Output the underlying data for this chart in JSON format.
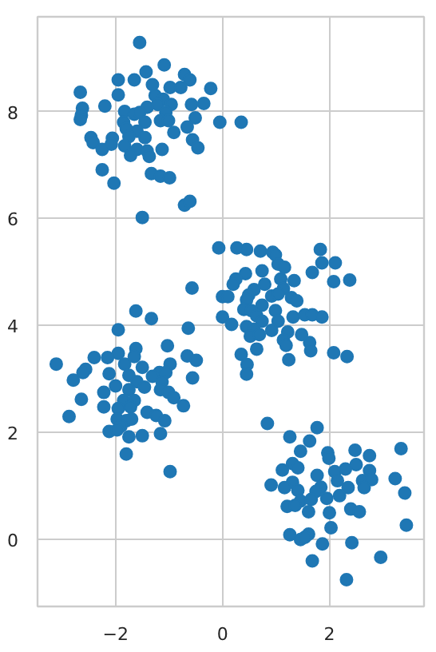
{
  "chart_data": {
    "type": "scatter",
    "marker": "circle",
    "grid": true,
    "xlim": [
      -3.46,
      3.77
    ],
    "ylim": [
      -1.25,
      9.77
    ],
    "xticks": [
      -2,
      0,
      2
    ],
    "yticks": [
      0,
      2,
      4,
      6,
      8
    ],
    "series": [
      {
        "color": "#1f77b4",
        "x": [
          -1.55,
          -1.09,
          -1.43,
          -1.95,
          -1.65,
          -0.71,
          -0.61,
          -2.66,
          -1.95,
          -1.31,
          -0.98,
          -0.78,
          -0.22,
          -1.26,
          -1.11,
          -2.2,
          -2.62,
          -2.64,
          -2.66,
          -1.83,
          -1.65,
          -1.41,
          -1.21,
          -0.96,
          -0.58,
          -0.35,
          -1.55,
          -1.06,
          -1.85,
          -1.45,
          -1.16,
          -1.01,
          -0.51,
          -0.05,
          0.35,
          -1.8,
          -1.6,
          -0.66,
          -0.91,
          -2.46,
          -2.06,
          -1.75,
          -1.45,
          -2.42,
          -2.08,
          -0.56,
          -2.25,
          -1.83,
          -1.6,
          -1.41,
          -1.13,
          -0.46,
          -1.72,
          -1.37,
          -2.25,
          -1.33,
          -1.16,
          -0.99,
          -2.03,
          -0.71,
          -0.61,
          -1.5,
          -0.07,
          0.27,
          0.45,
          0.71,
          0.94,
          0.99,
          1.83,
          1.86,
          2.11,
          1.04,
          1.16,
          0.74,
          0.43,
          0.25,
          0.2,
          1.68,
          2.08,
          2.38,
          0.79,
          1.09,
          1.34,
          1.14,
          0.59,
          0.49,
          0.0,
          0.1,
          0.92,
          1.04,
          1.29,
          1.39,
          0.45,
          0.74,
          0.4,
          0.54,
          0.99,
          0.0,
          0.64,
          1.32,
          1.54,
          1.68,
          1.86,
          1.04,
          0.17,
          0.45,
          0.74,
          0.59,
          0.92,
          0.52,
          0.69,
          1.22,
          1.48,
          1.14,
          1.63,
          1.19,
          1.65,
          0.64,
          0.35,
          2.08,
          2.33,
          1.24,
          0.46,
          0.45,
          -0.57,
          -1.62,
          -1.33,
          -0.64,
          -1.95,
          -1.03,
          -1.62,
          -1.95,
          -2.15,
          -2.4,
          -0.66,
          -0.49,
          -3.11,
          -1.83,
          -1.65,
          -0.98,
          -1.5,
          -2.56,
          -2.61,
          -2.12,
          -1.75,
          -1.18,
          -1.06,
          -1.31,
          -2.79,
          -0.56,
          -1.6,
          -1.13,
          -2.0,
          -2.22,
          -1.75,
          -1.46,
          -1.16,
          -1.01,
          -2.64,
          -1.85,
          -1.65,
          -0.91,
          -0.73,
          -2.22,
          -1.95,
          -1.72,
          -1.41,
          -1.24,
          -2.87,
          -1.08,
          -1.97,
          -1.8,
          -1.7,
          -1.9,
          -2.12,
          -1.97,
          -1.75,
          -1.5,
          -1.16,
          -1.8,
          -0.98,
          0.84,
          1.77,
          1.26,
          1.63,
          1.46,
          1.97,
          2.48,
          2.75,
          3.34,
          1.99,
          1.31,
          1.41,
          1.12,
          2.5,
          2.75,
          1.77,
          2.1,
          2.3,
          0.91,
          1.31,
          1.16,
          1.84,
          2.15,
          2.62,
          2.79,
          3.23,
          2.35,
          2.65,
          1.41,
          1.75,
          2.19,
          3.41,
          1.46,
          1.66,
          1.95,
          1.21,
          1.36,
          1.61,
          2.0,
          2.4,
          2.56,
          2.03,
          3.44,
          1.26,
          1.61,
          1.46,
          1.54,
          1.87,
          2.42,
          2.96,
          1.68,
          2.32
        ],
        "values": [
          9.29,
          8.87,
          8.74,
          8.59,
          8.59,
          8.69,
          8.59,
          8.36,
          8.31,
          8.5,
          8.45,
          8.45,
          8.43,
          8.3,
          8.23,
          8.1,
          8.06,
          7.93,
          7.85,
          8.0,
          7.95,
          8.08,
          8.13,
          8.13,
          8.13,
          8.15,
          7.98,
          7.98,
          7.8,
          7.8,
          7.83,
          7.83,
          7.88,
          7.8,
          7.8,
          7.68,
          7.63,
          7.71,
          7.61,
          7.51,
          7.5,
          7.53,
          7.51,
          7.42,
          7.39,
          7.47,
          7.29,
          7.36,
          7.29,
          7.26,
          7.29,
          7.32,
          7.18,
          7.16,
          6.91,
          6.84,
          6.79,
          6.76,
          6.66,
          6.25,
          6.32,
          6.02,
          5.45,
          5.45,
          5.42,
          5.39,
          5.37,
          5.32,
          5.42,
          5.17,
          5.17,
          5.15,
          5.09,
          5.02,
          4.97,
          4.87,
          4.77,
          4.99,
          4.82,
          4.85,
          4.77,
          4.87,
          4.84,
          4.69,
          4.67,
          4.57,
          4.54,
          4.54,
          4.55,
          4.59,
          4.52,
          4.46,
          4.48,
          4.38,
          4.3,
          4.28,
          4.28,
          4.16,
          4.18,
          4.16,
          4.2,
          4.2,
          4.16,
          4.08,
          4.02,
          3.98,
          4.08,
          3.93,
          3.91,
          3.8,
          3.83,
          3.88,
          3.83,
          3.73,
          3.68,
          3.63,
          3.53,
          3.56,
          3.46,
          3.49,
          3.42,
          3.36,
          3.27,
          3.09,
          4.7,
          4.27,
          4.13,
          3.95,
          3.92,
          3.62,
          3.57,
          3.48,
          3.4,
          3.4,
          3.43,
          3.35,
          3.28,
          3.28,
          3.42,
          3.28,
          3.22,
          3.18,
          3.12,
          3.1,
          3.07,
          3.12,
          3.12,
          3.05,
          2.98,
          3.02,
          2.95,
          2.95,
          2.87,
          2.75,
          2.8,
          2.85,
          2.8,
          2.75,
          2.62,
          2.6,
          2.6,
          2.65,
          2.5,
          2.48,
          2.45,
          2.48,
          2.38,
          2.32,
          2.3,
          2.22,
          2.25,
          2.22,
          2.25,
          2.12,
          2.02,
          2.05,
          1.92,
          1.94,
          1.98,
          1.6,
          1.27,
          2.17,
          2.09,
          1.92,
          1.84,
          1.65,
          1.62,
          1.67,
          1.57,
          1.7,
          1.52,
          1.42,
          1.34,
          1.3,
          1.4,
          1.29,
          1.2,
          1.27,
          1.32,
          1.02,
          1.07,
          0.97,
          0.98,
          1.1,
          1.1,
          1.12,
          1.14,
          0.97,
          0.97,
          0.92,
          0.9,
          0.82,
          0.87,
          0.72,
          0.75,
          0.77,
          0.62,
          0.64,
          0.52,
          0.5,
          0.57,
          0.52,
          0.22,
          0.27,
          0.09,
          0.1,
          0.0,
          0.04,
          -0.08,
          -0.06,
          -0.33,
          -0.4,
          -0.75
        ]
      }
    ]
  }
}
